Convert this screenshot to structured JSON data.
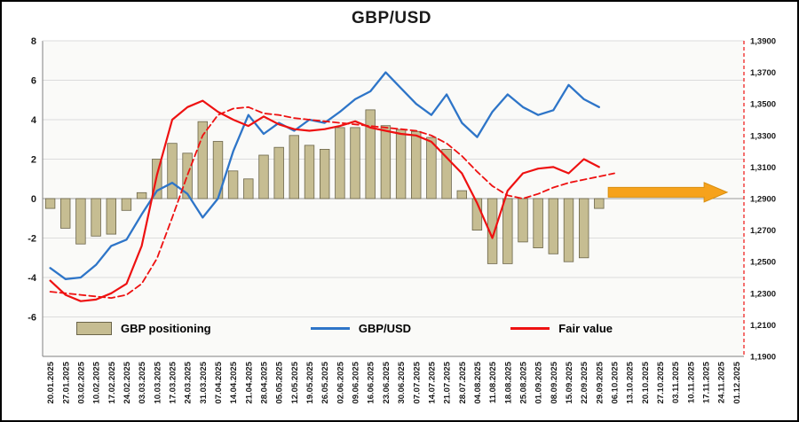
{
  "chart_data": {
    "type": "bar+line",
    "title": "GBP/USD",
    "categories": [
      "20.01.2025",
      "27.01.2025",
      "03.02.2025",
      "10.02.2025",
      "17.02.2025",
      "24.02.2025",
      "03.03.2025",
      "10.03.2025",
      "17.03.2025",
      "24.03.2025",
      "31.03.2025",
      "07.04.2025",
      "14.04.2025",
      "21.04.2025",
      "28.04.2025",
      "05.05.2025",
      "12.05.2025",
      "19.05.2025",
      "26.05.2025",
      "02.06.2025",
      "09.06.2025",
      "16.06.2025",
      "23.06.2025",
      "30.06.2025",
      "07.07.2025",
      "14.07.2025",
      "21.07.2025",
      "28.07.2025",
      "04.08.2025",
      "11.08.2025",
      "18.08.2025",
      "25.08.2025",
      "01.09.2025",
      "08.09.2025",
      "15.09.2025",
      "22.09.2025",
      "29.09.2025",
      "06.10.2025",
      "13.10.2025",
      "20.10.2025",
      "27.10.2025",
      "03.11.2025",
      "10.11.2025",
      "17.11.2025",
      "24.11.2025",
      "01.12.2025"
    ],
    "left_axis": {
      "min": -8,
      "max": 8,
      "ticks": [
        {
          "v": 8,
          "label": "8"
        },
        {
          "v": 6,
          "label": "6"
        },
        {
          "v": 4,
          "label": "4"
        },
        {
          "v": 2,
          "label": "2"
        },
        {
          "v": 0,
          "label": "0"
        },
        {
          "v": -2,
          "label": "-2"
        },
        {
          "v": -4,
          "label": "-4"
        },
        {
          "v": -6,
          "label": "-6"
        }
      ]
    },
    "right_axis": {
      "min": 1.19,
      "max": 1.39,
      "ticks": [
        {
          "v": 1.39,
          "label": "1,3900"
        },
        {
          "v": 1.37,
          "label": "1,3700"
        },
        {
          "v": 1.35,
          "label": "1,3500"
        },
        {
          "v": 1.33,
          "label": "1,3300"
        },
        {
          "v": 1.31,
          "label": "1,3100"
        },
        {
          "v": 1.29,
          "label": "1,2900"
        },
        {
          "v": 1.27,
          "label": "1,2700"
        },
        {
          "v": 1.25,
          "label": "1,2500"
        },
        {
          "v": 1.23,
          "label": "1,2300"
        },
        {
          "v": 1.21,
          "label": "1,2100"
        },
        {
          "v": 1.19,
          "label": "1,1900"
        }
      ]
    },
    "series": [
      {
        "id": "positioning",
        "name": "GBP positioning",
        "type": "bar",
        "axis": "left",
        "color": "#C6BD92",
        "border": "#6b654a",
        "values": [
          -0.5,
          -1.5,
          -2.3,
          -1.9,
          -1.8,
          -0.6,
          0.3,
          2.0,
          2.8,
          2.3,
          3.9,
          2.9,
          1.4,
          1.0,
          2.2,
          2.6,
          3.2,
          2.7,
          2.5,
          3.6,
          3.6,
          4.5,
          3.7,
          3.5,
          3.4,
          3.1,
          2.5,
          0.4,
          -1.6,
          -3.3,
          -3.3,
          -2.2,
          -2.5,
          -2.8,
          -3.2,
          -3.0,
          -0.5,
          null,
          null,
          null,
          null,
          null,
          null,
          null,
          null,
          null
        ]
      },
      {
        "id": "gbpusd",
        "name": "GBP/USD",
        "type": "line",
        "axis": "right",
        "color": "#2E75C8",
        "width": 2.3,
        "values": [
          1.246,
          1.239,
          1.24,
          1.248,
          1.26,
          1.264,
          1.28,
          1.295,
          1.3,
          1.293,
          1.278,
          1.29,
          1.32,
          1.343,
          1.331,
          1.338,
          1.333,
          1.34,
          1.338,
          1.345,
          1.353,
          1.358,
          1.37,
          1.36,
          1.35,
          1.343,
          1.356,
          1.338,
          1.329,
          1.345,
          1.356,
          1.348,
          1.343,
          1.346,
          1.362,
          1.353,
          1.348,
          null,
          null,
          null,
          null,
          null,
          null,
          null,
          null,
          null
        ]
      },
      {
        "id": "fair-value",
        "name": "Fair value",
        "type": "line",
        "axis": "right",
        "color": "#EE1111",
        "width": 2.2,
        "values": [
          1.238,
          1.229,
          1.225,
          1.226,
          1.23,
          1.236,
          1.26,
          1.305,
          1.34,
          1.348,
          1.352,
          1.345,
          1.34,
          1.336,
          1.342,
          1.337,
          1.334,
          1.333,
          1.334,
          1.336,
          1.339,
          1.335,
          1.333,
          1.331,
          1.33,
          1.326,
          1.316,
          1.306,
          1.287,
          1.265,
          1.295,
          1.306,
          1.309,
          1.31,
          1.306,
          1.315,
          1.31,
          null,
          null,
          null,
          null,
          null,
          null,
          null,
          null,
          null
        ]
      },
      {
        "id": "fair-value-dashed",
        "name": "Fair value",
        "type": "line",
        "axis": "right",
        "color": "#EE1111",
        "width": 1.8,
        "dash": "7,4",
        "values": [
          1.231,
          1.23,
          1.229,
          1.228,
          1.227,
          1.229,
          1.236,
          1.252,
          1.278,
          1.305,
          1.33,
          1.343,
          1.347,
          1.348,
          1.344,
          1.343,
          1.341,
          1.34,
          1.339,
          1.338,
          1.337,
          1.336,
          1.335,
          1.334,
          1.333,
          1.33,
          1.325,
          1.317,
          1.307,
          1.298,
          1.292,
          1.29,
          1.293,
          1.297,
          1.3,
          1.302,
          1.304,
          1.306,
          null,
          null,
          null,
          null,
          null,
          null,
          null,
          null
        ]
      }
    ],
    "annotation_arrow": {
      "from_date": "06.10.2025",
      "to_date": "24.11.2025",
      "value": 1.294,
      "color": "#F6A21C",
      "border_color": "#D88F10"
    },
    "colors": {
      "background": "#FFFFFF",
      "plot_background": "#FAFAF8",
      "gridline": "#DCDCDC",
      "zero_line": "#9A9A9A",
      "axis_text": "#1A1A1A",
      "plot_border": "#808080"
    },
    "legend_position": "bottom-inside"
  }
}
